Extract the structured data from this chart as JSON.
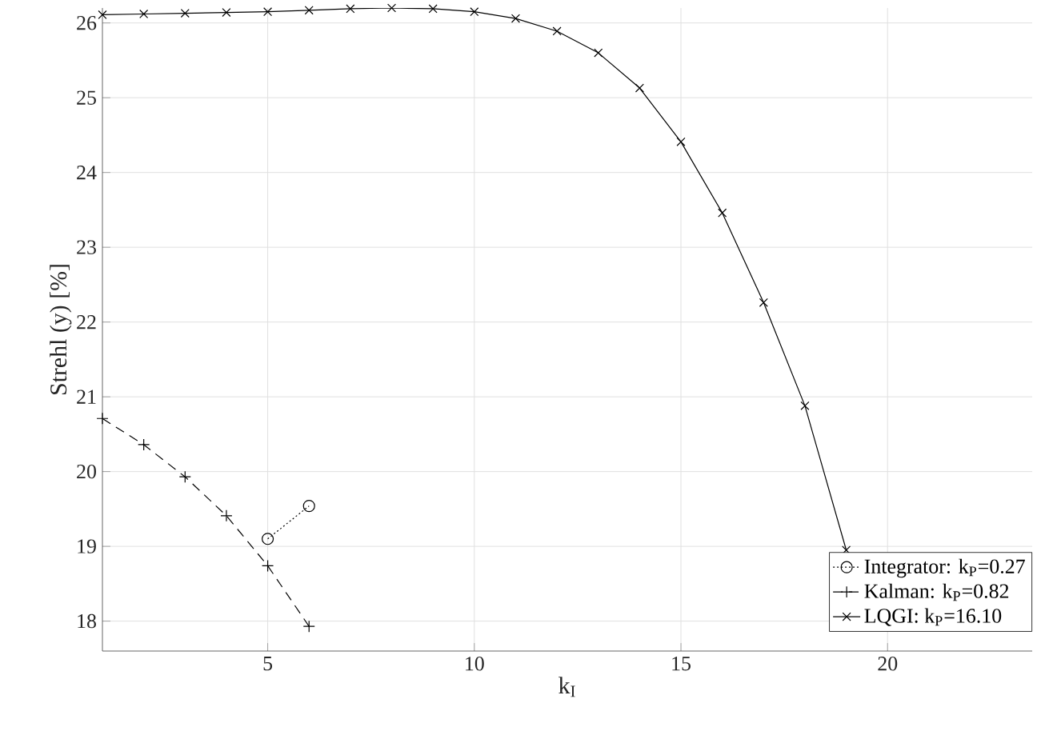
{
  "chart_data": {
    "type": "line",
    "xlabel": "k$_{I}$",
    "ylabel": "Strehl (y) [%]",
    "xlim": [
      1,
      23.5
    ],
    "ylim": [
      17.6,
      26.2
    ],
    "xticks": [
      5,
      10,
      15,
      20
    ],
    "yticks": [
      18,
      19,
      20,
      21,
      22,
      23,
      24,
      25,
      26
    ],
    "grid": true,
    "legend": "bottom right",
    "series": [
      {
        "name": "Integrator: k$_{P}$=0.27",
        "color": "#000000",
        "marker": "circle",
        "line_style": "dotted",
        "x": [
          5,
          6
        ],
        "values": [
          19.1,
          19.54
        ]
      },
      {
        "name": "Kalman: k$_{P}$=0.82",
        "color": "#000000",
        "marker": "plus",
        "line_style": "dashed",
        "x": [
          1,
          2,
          3,
          4,
          5,
          6
        ],
        "values": [
          20.71,
          20.36,
          19.93,
          19.41,
          18.74,
          17.93
        ]
      },
      {
        "name": "LQGI: k$_{P}$=16.10",
        "color": "#000000",
        "marker": "cross",
        "line_style": "solid",
        "x": [
          1,
          2,
          3,
          4,
          5,
          6,
          7,
          8,
          9,
          10,
          11,
          12,
          13,
          14,
          15,
          16,
          17,
          18,
          19
        ],
        "values": [
          26.11,
          26.12,
          26.13,
          26.14,
          26.15,
          26.17,
          26.19,
          26.2,
          26.19,
          26.15,
          26.06,
          25.89,
          25.6,
          25.13,
          24.41,
          23.46,
          22.26,
          20.88,
          18.95
        ]
      }
    ]
  }
}
